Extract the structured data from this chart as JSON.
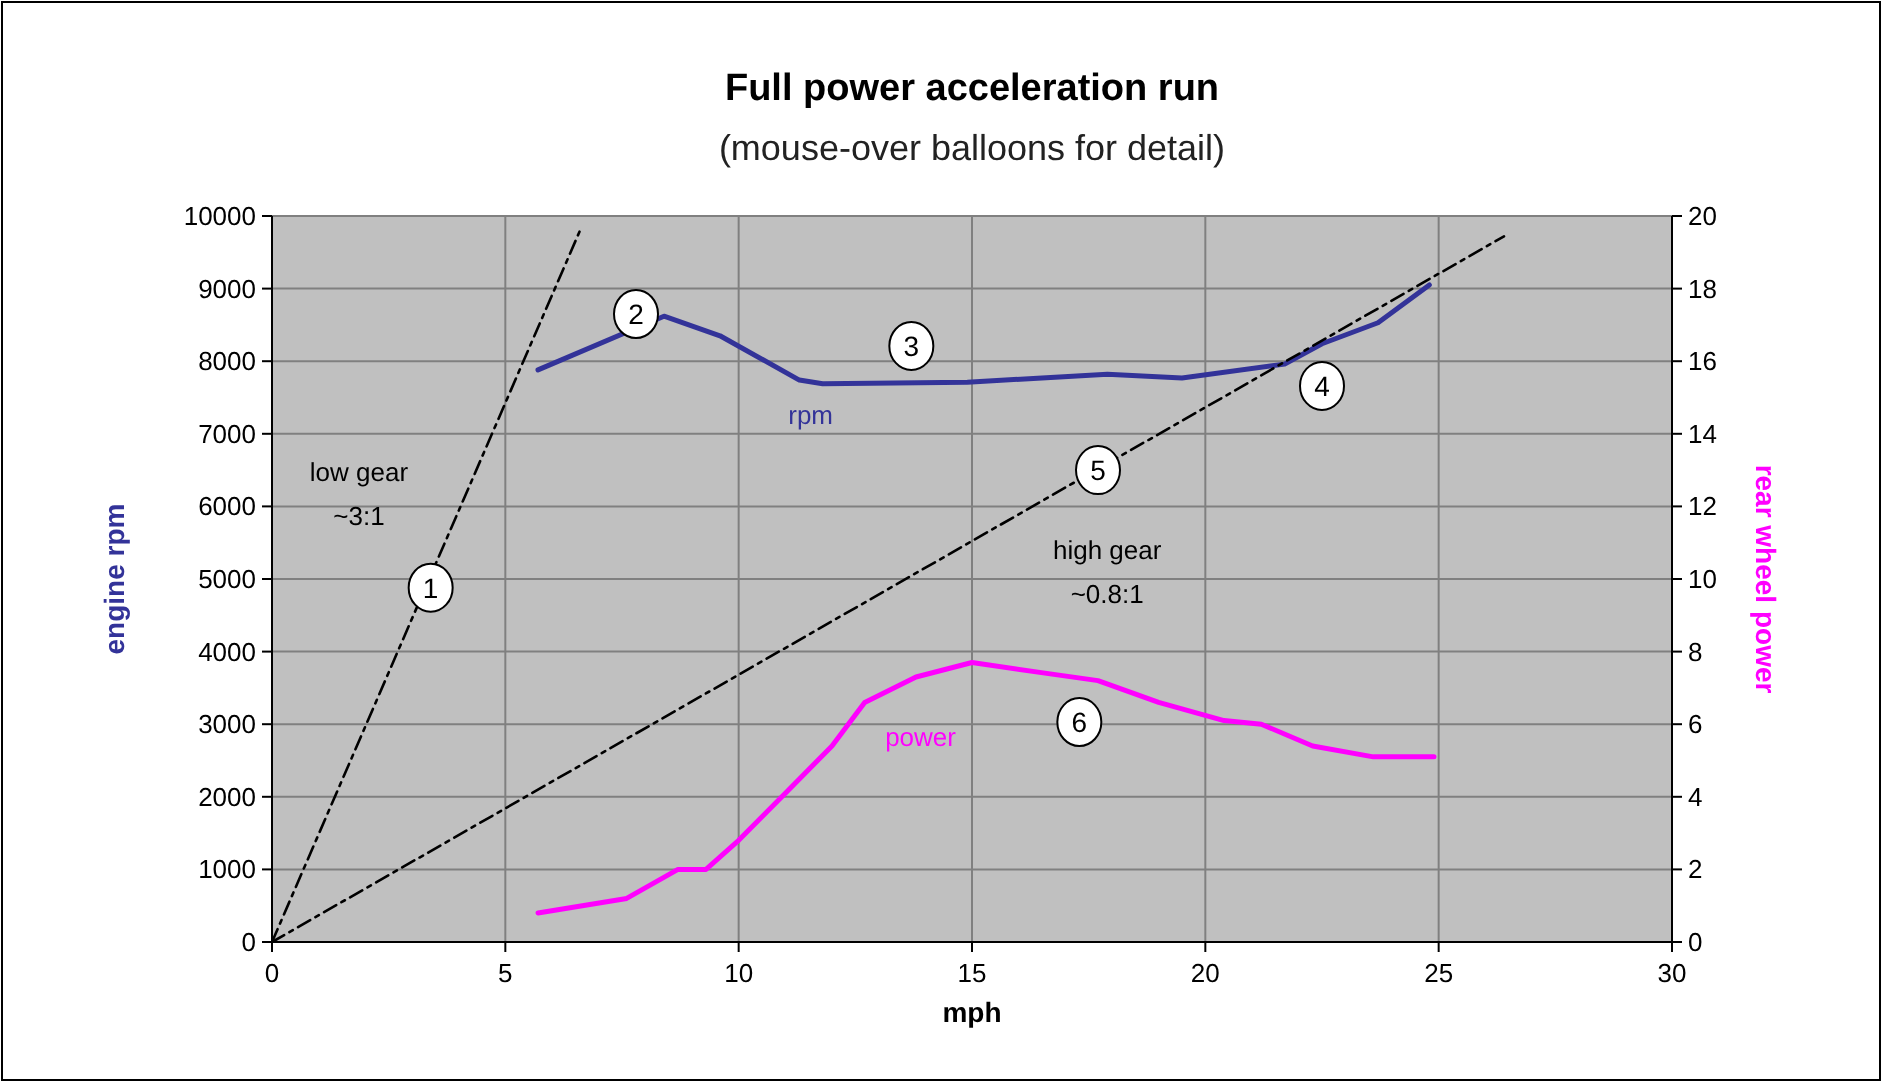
{
  "chart_data": {
    "type": "line",
    "title": "Full power acceleration run",
    "subtitle": "(mouse-over balloons for detail)",
    "xlabel": "mph",
    "ylabel": "engine rpm",
    "y2label": "rear wheel power",
    "xlim": [
      0,
      30
    ],
    "xticks": [
      0,
      5,
      10,
      15,
      20,
      25,
      30
    ],
    "ylim": [
      0,
      10000
    ],
    "yticks": [
      0,
      1000,
      2000,
      3000,
      4000,
      5000,
      6000,
      7000,
      8000,
      9000,
      10000
    ],
    "y2lim": [
      0,
      20
    ],
    "y2ticks": [
      0,
      2,
      4,
      6,
      8,
      10,
      12,
      14,
      16,
      18,
      20
    ],
    "grid": true,
    "marker": "none",
    "series": [
      {
        "name": "rpm",
        "color": "#333399",
        "line_style": "solid",
        "x": [
          5.7,
          8.4,
          9.6,
          11.3,
          11.8,
          14.9,
          16.5,
          17.9,
          19.5,
          21.7,
          22.5,
          23.7,
          24.8
        ],
        "values": [
          7880,
          8620,
          8350,
          7740,
          7690,
          7710,
          7770,
          7820,
          7770,
          7960,
          8240,
          8530,
          9050
        ]
      },
      {
        "name": "power",
        "color": "#ff00ff",
        "axis": "y2",
        "line_style": "solid",
        "x": [
          5.7,
          7.6,
          8.7,
          9.3,
          10.0,
          11.0,
          12.0,
          12.7,
          13.8,
          15.0,
          16.6,
          17.7,
          19.0,
          20.4,
          21.2,
          22.3,
          23.6,
          24.9
        ],
        "values": [
          0.8,
          1.2,
          2.0,
          2.0,
          2.8,
          4.1,
          5.4,
          6.6,
          7.3,
          7.7,
          7.4,
          7.2,
          6.6,
          6.1,
          6.0,
          5.4,
          5.1,
          5.1
        ]
      },
      {
        "name": "low gear ~3:1",
        "color": "#000000",
        "line_style": "dashed",
        "x": [
          0,
          6.6
        ],
        "values": [
          0,
          9800
        ]
      },
      {
        "name": "high gear ~0.8:1",
        "color": "#000000",
        "line_style": "dashed",
        "x": [
          0,
          26.4
        ],
        "values": [
          0,
          9720
        ]
      }
    ],
    "annotations": [
      {
        "text": "1",
        "x": 3.4,
        "y": 4880
      },
      {
        "text": "2",
        "x": 7.8,
        "y": 8650
      },
      {
        "text": "3",
        "x": 13.7,
        "y": 8210
      },
      {
        "text": "4",
        "x": 22.5,
        "y": 7660
      },
      {
        "text": "5",
        "x": 17.7,
        "y": 6500
      },
      {
        "text": "6",
        "x": 17.3,
        "y": 3030
      }
    ]
  }
}
